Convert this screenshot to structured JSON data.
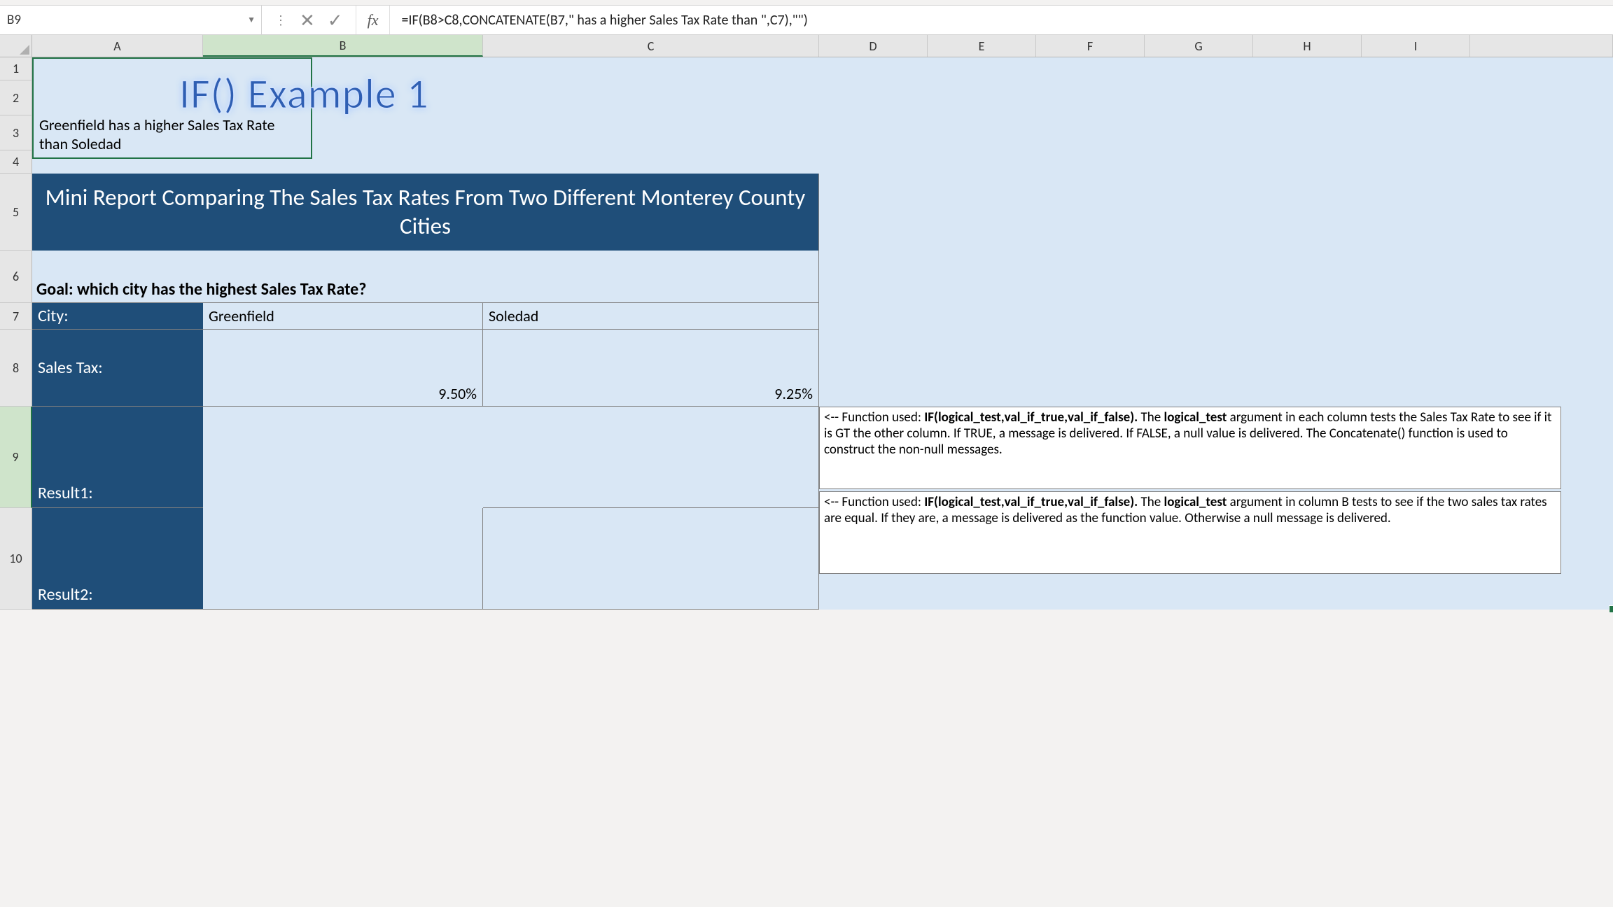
{
  "name_box": "B9",
  "formula": "=IF(B8>C8,CONCATENATE(B7,\" has a higher Sales Tax Rate than \",C7),\"\")",
  "columns": [
    "A",
    "B",
    "C",
    "D",
    "E",
    "F",
    "G",
    "H",
    "I"
  ],
  "rows": [
    "1",
    "2",
    "3",
    "4",
    "5",
    "6",
    "7",
    "8",
    "9",
    "10"
  ],
  "wordart": "IF() Example 1",
  "banner": "Mini Report Comparing The Sales Tax Rates From Two Different Monterey County Cities",
  "goal": "Goal: which city has the highest Sales Tax Rate?",
  "labels": {
    "city": "City:",
    "salesTax": "Sales Tax:",
    "r1": "Result1:",
    "r2": "Result2:"
  },
  "data": {
    "B7": "Greenfield",
    "C7": "Soledad",
    "B8": "9.50%",
    "C8": "9.25%",
    "B9": "Greenfield has a higher Sales Tax Rate than Soledad"
  },
  "notes": {
    "n1_pre": "<-- Function used: ",
    "n1_b": "IF(logical_test,val_if_true,val_if_false).",
    "n1_mid": " The ",
    "n1_b2": "logical_test",
    "n1_post": " argument in each column tests the Sales Tax Rate to see if it is GT the other column. If TRUE, a message is delivered. If FALSE, a null value is delivered. The Concatenate() function is used to construct the non-null messages.",
    "n2_pre": "<-- Function used: ",
    "n2_b": "IF(logical_test,val_if_true,val_if_false).",
    "n2_mid": " The ",
    "n2_b2": "logical_test",
    "n2_post": " argument in column B tests to see if the two sales tax rates are equal. If they are, a message is delivered as the function value. Otherwise a null message is delivered."
  },
  "colors": {
    "sheet_bg": "#d9e7f5",
    "banner_bg": "#1f4e79",
    "selection": "#217346",
    "header_bg": "#e6e6e6"
  }
}
